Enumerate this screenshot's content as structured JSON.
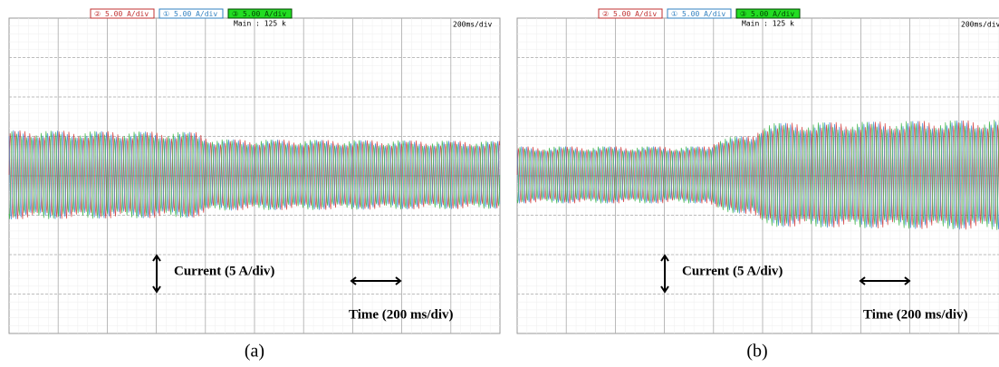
{
  "panels": [
    {
      "channels": [
        "② 5.00 A/div",
        "① 5.00 A/div",
        "③ 5.00 A/div"
      ],
      "timebase_main": "Main : 125 k",
      "time_scale": "200ms/div",
      "current_annotation": "Current (5 A/div)",
      "time_annotation": "Time (200 ms/div)",
      "caption": "(a)"
    },
    {
      "channels": [
        "② 5.00 A/div",
        "① 5.00 A/div",
        "③ 5.00 A/div"
      ],
      "timebase_main": "Main : 125 k",
      "time_scale": "200ms/div",
      "current_annotation": "Current (5 A/div)",
      "time_annotation": "Time (200 ms/div)",
      "caption": "(b)"
    }
  ]
}
